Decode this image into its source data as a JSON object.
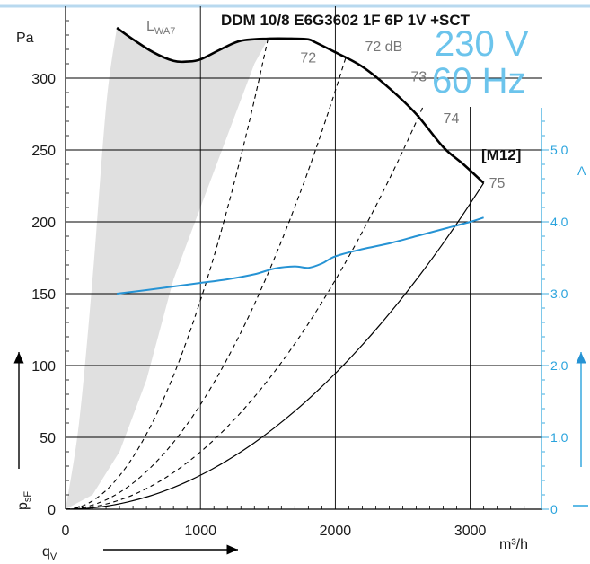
{
  "chart_data": {
    "type": "line",
    "title": "DDM 10/8 E6G3602 1F 6P 1V +SCT",
    "voltage_label": "230 V",
    "frequency_label": "60 Hz",
    "model_tag": "[M12]",
    "xlabel": "q",
    "xlabel_sub": "V",
    "x_unit": "m³/h",
    "ylabel": "p",
    "ylabel_sub": "sF",
    "y_unit": "Pa",
    "y2_unit": "A",
    "xlim": [
      0,
      3500
    ],
    "ylim": [
      0,
      350
    ],
    "y2lim": [
      0,
      7
    ],
    "x_ticks": [
      "0",
      "1000",
      "2000",
      "3000"
    ],
    "y_ticks": [
      "0",
      "50",
      "100",
      "150",
      "200",
      "250",
      "300"
    ],
    "y2_ticks": [
      "0",
      "1.0",
      "2.0",
      "3.0",
      "4.0",
      "5.0"
    ],
    "grid": true,
    "lwa_label": "L",
    "lwa_label_sub": "WA7",
    "series": [
      {
        "name": "",
        "role": "pressure",
        "color": "#000000",
        "x": [
          380,
          500,
          650,
          800,
          900,
          1000,
          1150,
          1300,
          1500,
          1700,
          1800,
          1850,
          2000,
          2200,
          2400,
          2600,
          2800,
          2950,
          3100
        ],
        "y": [
          335,
          327,
          318,
          312,
          311.5,
          313,
          320,
          326,
          327.5,
          327.5,
          327,
          325,
          318,
          308,
          293,
          275,
          252,
          240,
          227
        ]
      },
      {
        "name": "",
        "role": "current",
        "color": "#2693d4",
        "axis": "y2",
        "x": [
          380,
          600,
          800,
          1000,
          1200,
          1400,
          1550,
          1700,
          1800,
          1900,
          2000,
          2200,
          2400,
          2600,
          2800,
          3000,
          3100
        ],
        "y": [
          3.0,
          3.05,
          3.1,
          3.15,
          3.2,
          3.27,
          3.35,
          3.38,
          3.36,
          3.42,
          3.52,
          3.62,
          3.7,
          3.8,
          3.9,
          4.0,
          4.06
        ]
      }
    ],
    "system_curves": [
      {
        "label": "72",
        "x_end": 1500,
        "y_end": 327,
        "style": "dashed",
        "label_anchor": [
          1740,
          314
        ]
      },
      {
        "label": "72 dB",
        "x_end": 2080,
        "y_end": 315,
        "style": "dashed",
        "label_anchor": [
          2220,
          322
        ]
      },
      {
        "label": "73",
        "x_end": 2650,
        "y_end": 280,
        "style": "dashed",
        "label_anchor": [
          2560,
          301
        ]
      },
      {
        "label": "74",
        "x_end": 3100,
        "y_end": 227,
        "style": "solid",
        "label_anchor": [
          2800,
          272
        ]
      },
      {
        "label": "75",
        "x_end": 3100,
        "y_end": 227,
        "style": "none",
        "label_anchor": [
          3140,
          227
        ]
      }
    ],
    "lwa7_region": {
      "color": "#e0e0e0",
      "left_x": [
        0,
        100,
        200,
        300,
        380
      ],
      "left_y": [
        0,
        60,
        160,
        280,
        335
      ],
      "right_x": [
        0,
        200,
        400,
        600,
        800,
        1000,
        1200,
        1400,
        1500
      ],
      "right_y": [
        0,
        10,
        40,
        90,
        160,
        210,
        260,
        310,
        327
      ]
    },
    "operating_point_line": {
      "x": 3000,
      "y_top": 280
    }
  }
}
